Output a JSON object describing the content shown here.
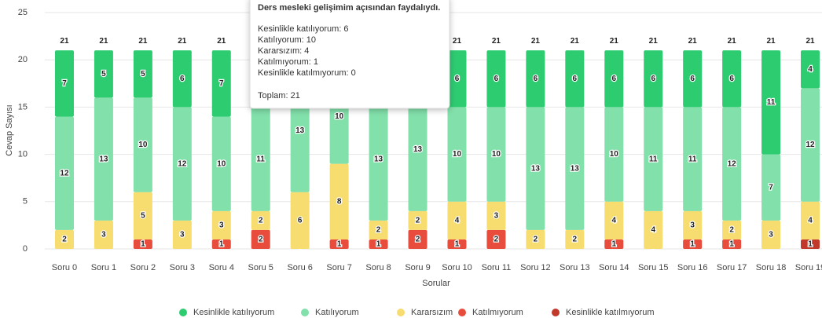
{
  "chart_data": {
    "type": "stacked_bar",
    "y_label": "Cevap Sayısı",
    "x_label": "Sorular",
    "categories": [
      "Soru 0",
      "Soru 1",
      "Soru 2",
      "Soru 3",
      "Soru 4",
      "Soru 5",
      "Soru 6",
      "Soru 7",
      "Soru 8",
      "Soru 9",
      "Soru 10",
      "Soru 11",
      "Soru 12",
      "Soru 13",
      "Soru 14",
      "Soru 15",
      "Soru 16",
      "Soru 17",
      "Soru 18",
      "Soru 19"
    ],
    "series": [
      {
        "name": "Kesinlikle katılmıyorum",
        "color": "#c0392b",
        "values": [
          0,
          0,
          0,
          0,
          0,
          0,
          0,
          0,
          0,
          0,
          0,
          0,
          0,
          0,
          0,
          0,
          0,
          0,
          0,
          1
        ]
      },
      {
        "name": "Katılmıyorum",
        "color": "#e74c3c",
        "values": [
          0,
          0,
          1,
          0,
          1,
          2,
          0,
          1,
          1,
          2,
          1,
          2,
          0,
          0,
          1,
          0,
          1,
          1,
          0,
          0
        ],
        "value_labels": [
          null,
          null,
          "1",
          null,
          "1",
          "2",
          "0",
          "1",
          "1",
          "2",
          "1",
          "2",
          null,
          null,
          "1",
          "0",
          "1",
          "1",
          null,
          null
        ]
      },
      {
        "name": "Kararsızım",
        "color": "#f7dc6f",
        "values": [
          2,
          3,
          5,
          3,
          3,
          2,
          6,
          8,
          2,
          2,
          4,
          3,
          2,
          2,
          4,
          4,
          3,
          2,
          3,
          4
        ]
      },
      {
        "name": "Katılıyorum",
        "color": "#82e0aa",
        "values": [
          12,
          13,
          10,
          12,
          10,
          11,
          13,
          10,
          13,
          13,
          10,
          10,
          13,
          13,
          10,
          11,
          11,
          12,
          7,
          12
        ]
      },
      {
        "name": "Kesinlikle katılıyorum",
        "color": "#2ecc71",
        "values": [
          7,
          5,
          5,
          6,
          7,
          6,
          2,
          2,
          5,
          4,
          6,
          6,
          6,
          6,
          6,
          6,
          6,
          6,
          11,
          4
        ]
      }
    ],
    "totals": [
      21,
      21,
      21,
      21,
      21,
      21,
      21,
      21,
      21,
      21,
      21,
      21,
      21,
      21,
      21,
      21,
      21,
      21,
      21,
      21
    ],
    "ylim": [
      0,
      25
    ],
    "yticks": [
      0,
      5,
      10,
      15,
      20,
      25
    ],
    "grid": true,
    "legend": "bottom",
    "tooltip": {
      "title": "Ders mesleki gelişimim açısından faydalıydı.",
      "lines": [
        "Kesinlikle katılıyorum: 6",
        "Katılıyorum: 10",
        "Kararsızım: 4",
        "Katılmıyorum: 1",
        "Kesinlikle katılmıyorum: 0"
      ],
      "total": "Toplam: 21"
    }
  }
}
